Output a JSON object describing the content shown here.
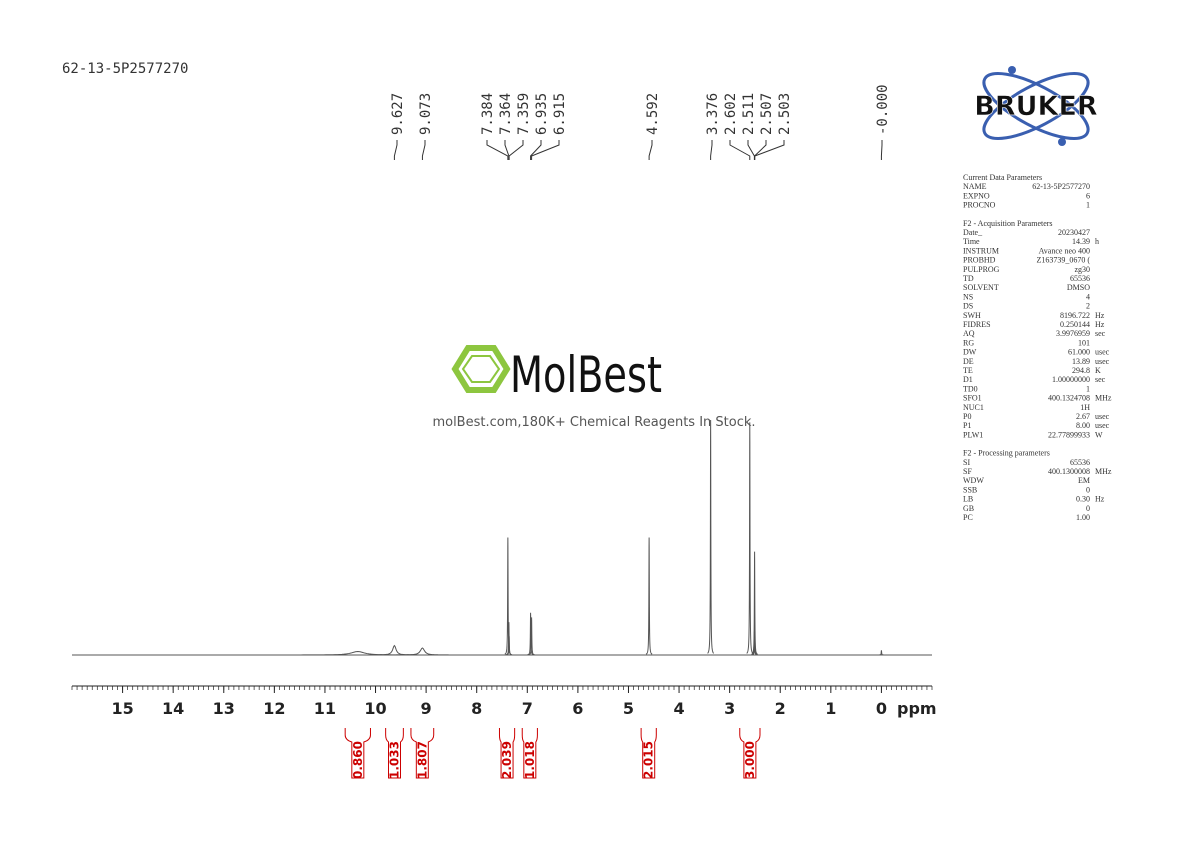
{
  "sample_id": "62-13-5P2577270",
  "logo": "BRUKER",
  "watermark": {
    "brand": "MolBest",
    "tagline": "molBest.com,180K+ Chemical Reagents In Stock."
  },
  "chart_data": {
    "type": "nmr",
    "x_label": "ppm",
    "xlim": [
      16,
      -1
    ],
    "xticks": [
      15,
      14,
      13,
      12,
      11,
      10,
      9,
      8,
      7,
      6,
      5,
      4,
      3,
      2,
      1,
      0
    ],
    "color": "#555555",
    "peak_labels": [
      9.627,
      9.073,
      7.384,
      7.364,
      7.359,
      6.935,
      6.915,
      4.592,
      3.376,
      2.602,
      2.511,
      2.507,
      2.503,
      {
        "value": 0,
        "label": "-0.000"
      }
    ],
    "peaks": {
      "x": [
        10.35,
        9.627,
        9.073,
        7.384,
        7.364,
        7.359,
        6.935,
        6.915,
        4.592,
        3.376,
        2.602,
        2.511,
        2.507,
        2.503,
        0
      ],
      "values": [
        1.5,
        4,
        3,
        50,
        14,
        8,
        18,
        16,
        50,
        100,
        99,
        10,
        44,
        10,
        2
      ],
      "widths": [
        0.3,
        0.08,
        0.1,
        0.01,
        0.01,
        0.01,
        0.01,
        0.01,
        0.01,
        0.01,
        0.01,
        0.01,
        0.01,
        0.01,
        0.01
      ]
    },
    "integrals": {
      "from": [
        10.6,
        9.8,
        9.3,
        7.55,
        7.1,
        4.75,
        2.8
      ],
      "to": [
        10.1,
        9.45,
        8.85,
        7.25,
        6.8,
        4.45,
        2.4
      ],
      "values": [
        0.86,
        1.033,
        1.807,
        2.039,
        1.018,
        2.015,
        3
      ],
      "value_labels": [
        "0.860",
        "1.033",
        "1.807",
        "2.039",
        "1.018",
        "2.015",
        "3.000"
      ],
      "color": "#cc0000"
    }
  },
  "parameters": [
    {
      "title": "Current Data Parameters",
      "rows": [
        [
          "NAME",
          "62-13-5P2577270",
          ""
        ],
        [
          "EXPNO",
          "6",
          ""
        ],
        [
          "PROCNO",
          "1",
          ""
        ]
      ]
    },
    {
      "title": "F2 - Acquisition Parameters",
      "rows": [
        [
          "Date_",
          "20230427",
          ""
        ],
        [
          "Time",
          "14.39",
          "h"
        ],
        [
          "INSTRUM",
          "Avance neo 400",
          ""
        ],
        [
          "PROBHD",
          "Z163739_0670 (",
          ""
        ],
        [
          "PULPROG",
          "zg30",
          ""
        ],
        [
          "TD",
          "65536",
          ""
        ],
        [
          "SOLVENT",
          "DMSO",
          ""
        ],
        [
          "NS",
          "4",
          ""
        ],
        [
          "DS",
          "2",
          ""
        ],
        [
          "SWH",
          "8196.722",
          "Hz"
        ],
        [
          "FIDRES",
          "0.250144",
          "Hz"
        ],
        [
          "AQ",
          "3.9976959",
          "sec"
        ],
        [
          "RG",
          "101",
          ""
        ],
        [
          "DW",
          "61.000",
          "usec"
        ],
        [
          "DE",
          "13.89",
          "usec"
        ],
        [
          "TE",
          "294.8",
          "K"
        ],
        [
          "D1",
          "1.00000000",
          "sec"
        ],
        [
          "TD0",
          "1",
          ""
        ],
        [
          "SFO1",
          "400.1324708",
          "MHz"
        ],
        [
          "NUC1",
          "1H",
          ""
        ],
        [
          "P0",
          "2.67",
          "usec"
        ],
        [
          "P1",
          "8.00",
          "usec"
        ],
        [
          "PLW1",
          "22.77899933",
          "W"
        ]
      ]
    },
    {
      "title": "F2 - Processing parameters",
      "rows": [
        [
          "SI",
          "65536",
          ""
        ],
        [
          "SF",
          "400.1300008",
          "MHz"
        ],
        [
          "WDW",
          "EM",
          ""
        ],
        [
          "SSB",
          "0",
          ""
        ],
        [
          "LB",
          "0.30",
          "Hz"
        ],
        [
          "GB",
          "0",
          ""
        ],
        [
          "PC",
          "1.00",
          ""
        ]
      ]
    }
  ]
}
